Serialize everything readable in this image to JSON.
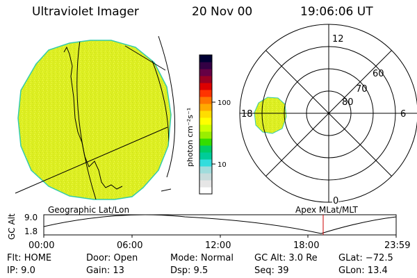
{
  "header": {
    "title": "Ultraviolet Imager",
    "date": "20 Nov 00",
    "time": "19:06:06 UT"
  },
  "colorbar": {
    "label": "photon cm⁻²s⁻¹",
    "tick_100": "100",
    "tick_10": "10",
    "colors": [
      "#ffffff",
      "#e6e6e6",
      "#c8dcdc",
      "#a0dcdc",
      "#33dddd",
      "#00cc99",
      "#00cc66",
      "#33dd00",
      "#99ee00",
      "#ccff00",
      "#ffff00",
      "#ffdd00",
      "#ffaa00",
      "#ff7700",
      "#ff3300",
      "#dd0000",
      "#990022",
      "#660044",
      "#330044",
      "#000033"
    ]
  },
  "polar": {
    "lat_labels": [
      "80",
      "70",
      "60"
    ],
    "mlt_labels": {
      "top": "12",
      "right": "6",
      "bottom": "0",
      "left": "18"
    }
  },
  "map_labels": {
    "left": "Geographic Lat/Lon",
    "right": "Apex MLat/MLT"
  },
  "timeline": {
    "ylabel": "GC Alt",
    "y_ticks": [
      "9.0",
      "1.8"
    ],
    "x_ticks": [
      "00:00",
      "06:00",
      "12:00",
      "18:00",
      "23:59"
    ],
    "current_time_marker_color": "#cc0000"
  },
  "info": {
    "filter": "Flt: HOME",
    "ip": "IP:  9.0",
    "door": "Door: Open",
    "gain": "Gain: 13",
    "mode": "Mode: Normal",
    "dsp": "Dsp:     9.5",
    "gc_alt": "GC Alt: 3.0 Re",
    "seq": "Seq: 39",
    "glat": "GLat: −72.5",
    "glon": "GLon:  13.4"
  },
  "colors": {
    "globe_fill": "#ddee22",
    "globe_edge": "#33ccaa",
    "marker": "#cc0000"
  }
}
